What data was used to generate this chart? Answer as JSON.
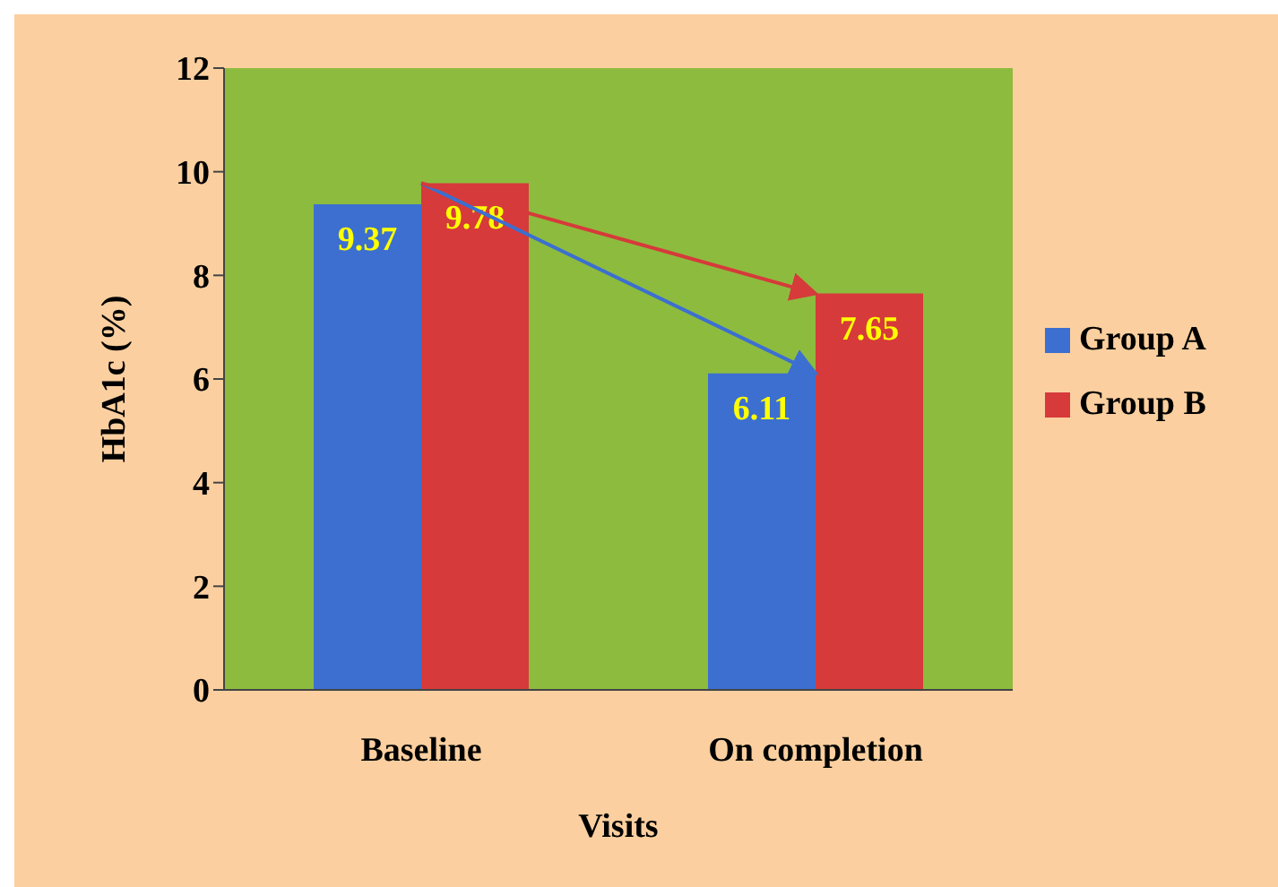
{
  "chart_data": {
    "type": "bar",
    "xlabel": "Visits",
    "ylabel": "HbA1c (%)",
    "categories": [
      "Baseline",
      "On completion"
    ],
    "series": [
      {
        "name": "Group A",
        "color": "#3c6fd0",
        "values": [
          9.37,
          6.11
        ]
      },
      {
        "name": "Group B",
        "color": "#d63a3a",
        "values": [
          9.78,
          7.65
        ]
      }
    ],
    "ylim": [
      0,
      12
    ],
    "yticks": [
      0,
      2,
      4,
      6,
      8,
      10,
      12
    ],
    "data_labels": true,
    "legend": "right"
  }
}
